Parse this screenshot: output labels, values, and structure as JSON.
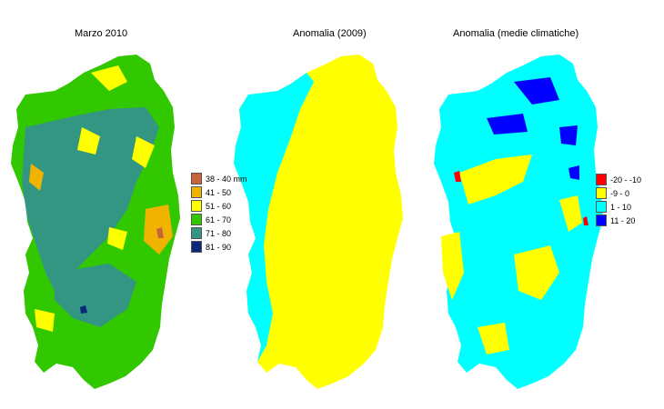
{
  "panels": [
    {
      "title": "Marzo 2010",
      "legend": [
        {
          "label": "38 - 40 mm",
          "color": "#c8643c"
        },
        {
          "label": "41 - 50",
          "color": "#f0b400"
        },
        {
          "label": "51 - 60",
          "color": "#ffff00"
        },
        {
          "label": "61 - 70",
          "color": "#32c800"
        },
        {
          "label": "71 - 80",
          "color": "#329682"
        },
        {
          "label": "81 - 90",
          "color": "#0a2878"
        }
      ]
    },
    {
      "title": "Anomalia (2009)",
      "legend": []
    },
    {
      "title": "Anomalia (medie climatiche)",
      "legend": [
        {
          "label": "-20 - -10",
          "color": "#ff0000"
        },
        {
          "label": "-9 - 0",
          "color": "#ffff00"
        },
        {
          "label": "1 - 10",
          "color": "#00ffff"
        },
        {
          "label": "11 - 20",
          "color": "#0000ff"
        }
      ]
    }
  ]
}
